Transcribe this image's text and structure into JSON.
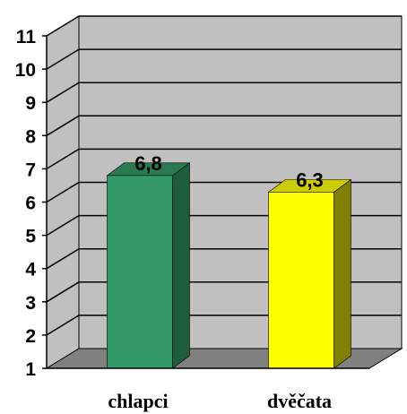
{
  "chart_data": {
    "type": "bar",
    "three_d": true,
    "categories": [
      "chlapci",
      "dvěčata"
    ],
    "values": [
      6.8,
      6.3
    ],
    "data_labels": [
      "6,8",
      "6,3"
    ],
    "ylim": [
      1,
      11
    ],
    "yticks": [
      "1",
      "2",
      "3",
      "4",
      "5",
      "6",
      "7",
      "8",
      "9",
      "10",
      "11"
    ],
    "grid": true,
    "legend": "none",
    "colors": {
      "bars": [
        "#339966",
        "#ffff00"
      ],
      "bar_sides": [
        "#1f5c3d",
        "#808000"
      ],
      "bar_tops": [
        "#2a7a52",
        "#cccc00"
      ],
      "wall": "#c0c0c0",
      "floor": "#808080",
      "gridline": "#000000"
    }
  }
}
